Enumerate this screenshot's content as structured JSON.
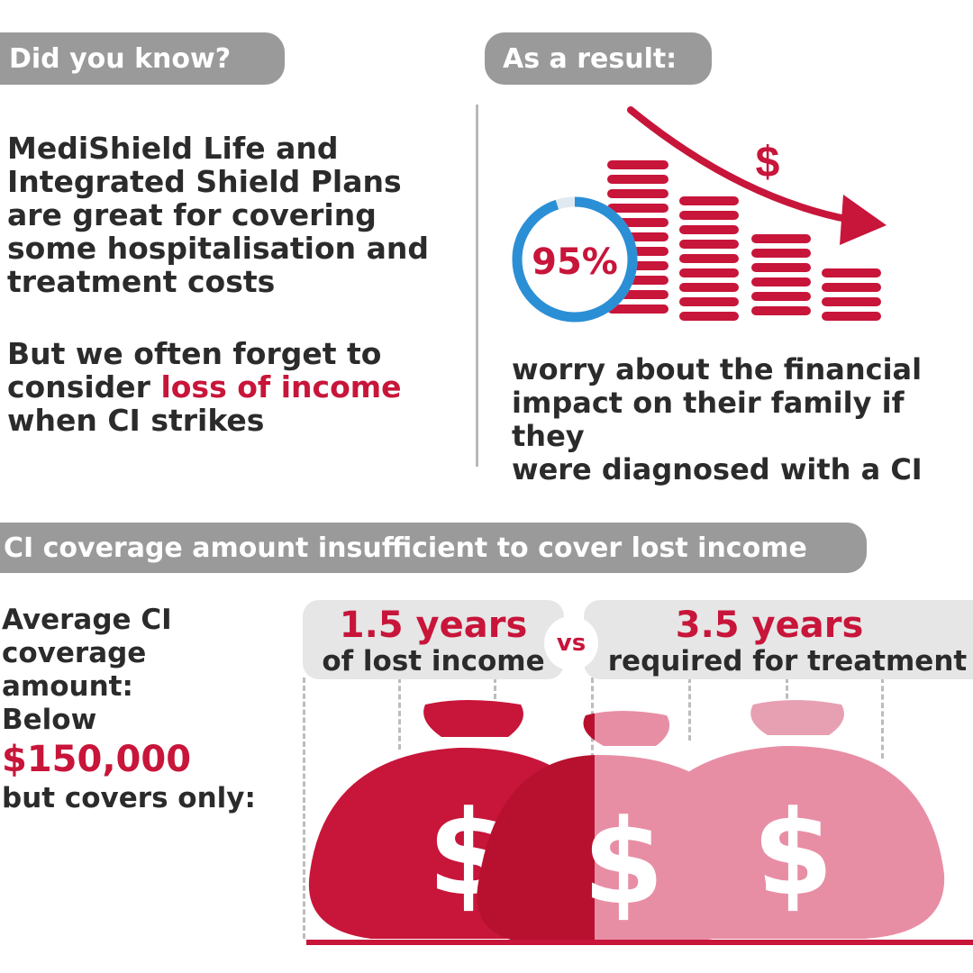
{
  "top_left": {
    "heading": "Did you know?",
    "paragraph1_lines": [
      "MediShield Life and",
      "Integrated Shield Plans",
      "are great for covering",
      "some hospitalisation and",
      "treatment costs"
    ],
    "paragraph2_line1": "But we often forget to",
    "paragraph2_line2_prefix": "consider ",
    "paragraph2_line2_highlight": "loss of income",
    "paragraph2_line3": "when CI strikes"
  },
  "top_right": {
    "heading": "As a result:",
    "percent": "95%",
    "percent_value": 95,
    "dollar_symbol": "$",
    "caption_lines": [
      "worry about the financial",
      "impact on their family if they",
      "were diagnosed with a CI"
    ]
  },
  "bottom": {
    "banner": "CI coverage amount insufficient to cover lost income",
    "left_lines": [
      "Average CI",
      "coverage",
      "amount:",
      "Below"
    ],
    "amount": "$150,000",
    "covers_only": "but covers only:",
    "box1_big": "1.5 years",
    "box1_small": "of lost income",
    "vs": "vs",
    "box2_big": "3.5 years",
    "box2_small": "required for treatment",
    "bag_symbol": "$"
  },
  "colors": {
    "accent": "#c8153a",
    "pill_gray": "#9a9a9a",
    "ring_blue": "#2b8fd6",
    "light_red": "#e78ea5"
  },
  "icons": [
    "coin-stacks-icon",
    "down-trend-arrow-icon",
    "money-bag-icon"
  ]
}
